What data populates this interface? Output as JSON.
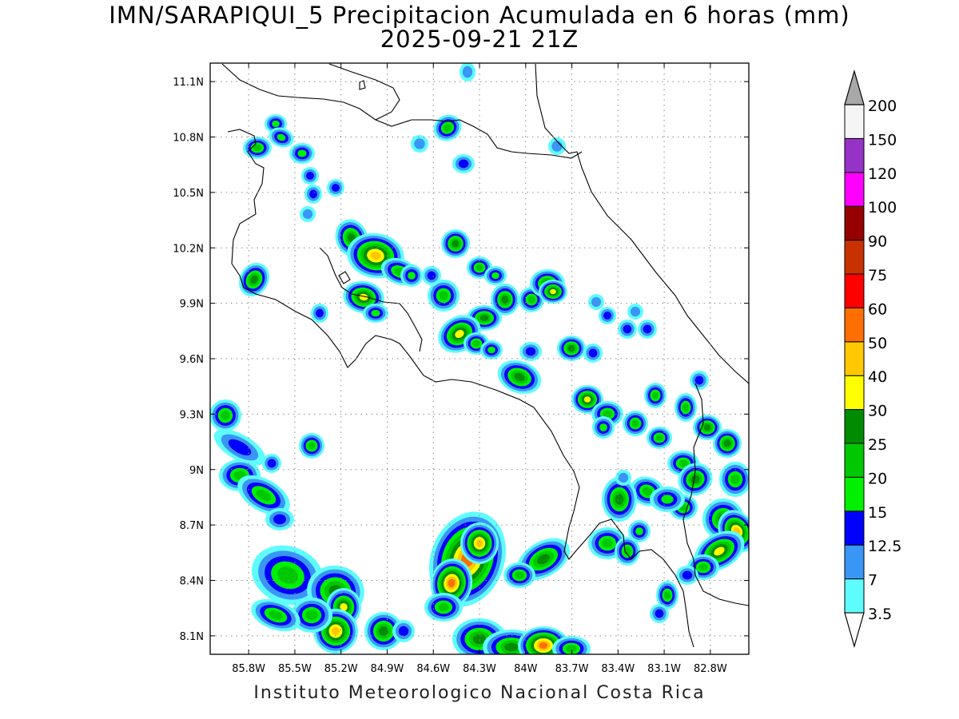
{
  "title_line1": "IMN/SARAPIQUI_5 Precipitacion Acumulada en 6 horas (mm)",
  "title_line2": "2025-09-21 21Z",
  "footer": "Instituto Meteorologico Nacional Costa Rica",
  "map": {
    "lon_range": [
      -86.05,
      -82.55
    ],
    "lat_range": [
      8.0,
      11.2
    ],
    "lon_ticks": [
      "85.8W",
      "85.5W",
      "85.2W",
      "84.9W",
      "84.6W",
      "84.3W",
      "84W",
      "83.7W",
      "83.4W",
      "83.1W",
      "82.8W"
    ],
    "lat_ticks": [
      "11.1N",
      "10.8N",
      "10.5N",
      "10.2N",
      "9.9N",
      "9.6N",
      "9.3N",
      "9N",
      "8.7N",
      "8.4N",
      "8.1N"
    ],
    "grid": true
  },
  "colorbar": {
    "levels": [
      "3.5",
      "7",
      "12.5",
      "15",
      "20",
      "25",
      "30",
      "40",
      "50",
      "60",
      "75",
      "90",
      "100",
      "120",
      "150",
      "200"
    ],
    "colors": [
      "#ffffff",
      "#5efcfc",
      "#3a96f5",
      "#0000ff",
      "#00f000",
      "#00c800",
      "#008c00",
      "#ffff00",
      "#ffc800",
      "#ff6e00",
      "#ff0000",
      "#c83200",
      "#960000",
      "#ff00ff",
      "#9632c8",
      "#f5f5f5",
      "#a8a8a8"
    ]
  }
}
